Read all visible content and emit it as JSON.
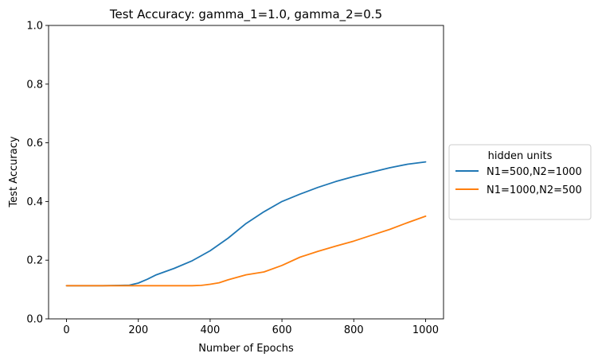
{
  "chart_data": {
    "type": "line",
    "title": "Test Accuracy:  gamma_1=1.0, gamma_2=0.5",
    "xlabel": "Number of Epochs",
    "ylabel": "Test Accuracy",
    "xlim": [
      -50,
      1050
    ],
    "ylim": [
      0.0,
      1.0
    ],
    "xticks": [
      0,
      200,
      400,
      600,
      800,
      1000
    ],
    "yticks": [
      0.0,
      0.2,
      0.4,
      0.6,
      0.8,
      1.0
    ],
    "xtick_labels": [
      "0",
      "200",
      "400",
      "600",
      "800",
      "1000"
    ],
    "ytick_labels": [
      "0.0",
      "0.2",
      "0.4",
      "0.6",
      "0.8",
      "1.0"
    ],
    "grid": false,
    "legend": {
      "title": "hidden units",
      "placement": "center-right-outside"
    },
    "series": [
      {
        "name": "N1=500,N2=1000",
        "color": "#1f77b4",
        "x": [
          0,
          50,
          100,
          150,
          175,
          200,
          225,
          250,
          300,
          350,
          400,
          450,
          500,
          550,
          600,
          650,
          700,
          750,
          800,
          850,
          900,
          950,
          1000
        ],
        "y": [
          0.113,
          0.113,
          0.113,
          0.114,
          0.115,
          0.122,
          0.135,
          0.15,
          0.172,
          0.198,
          0.232,
          0.275,
          0.325,
          0.365,
          0.4,
          0.425,
          0.448,
          0.468,
          0.485,
          0.5,
          0.515,
          0.527,
          0.535
        ]
      },
      {
        "name": "N1=1000,N2=500",
        "color": "#ff7f0e",
        "x": [
          0,
          100,
          200,
          300,
          350,
          375,
          400,
          425,
          450,
          500,
          550,
          600,
          650,
          700,
          750,
          800,
          850,
          900,
          950,
          1000
        ],
        "y": [
          0.113,
          0.113,
          0.113,
          0.113,
          0.113,
          0.114,
          0.118,
          0.123,
          0.133,
          0.15,
          0.16,
          0.182,
          0.21,
          0.23,
          0.248,
          0.265,
          0.285,
          0.305,
          0.328,
          0.35
        ]
      }
    ]
  }
}
